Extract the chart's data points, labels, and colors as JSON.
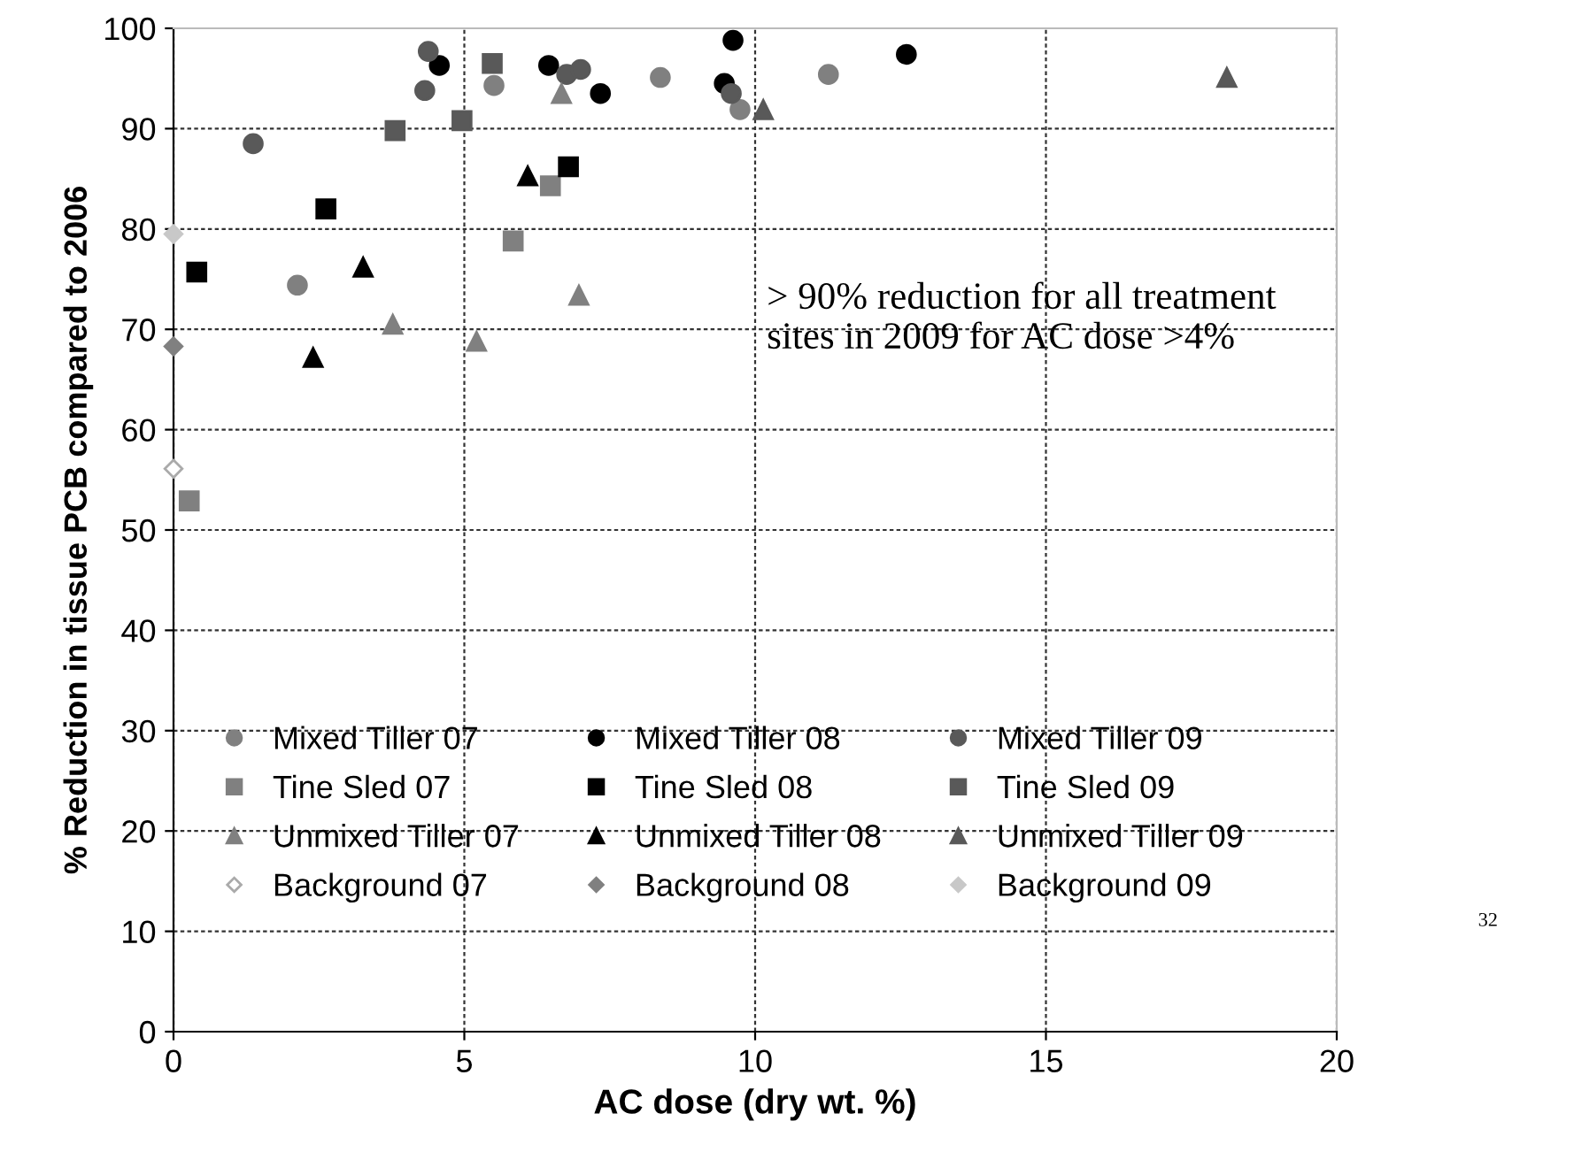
{
  "chart_data": {
    "type": "scatter",
    "xlabel": "AC dose (dry wt. %)",
    "ylabel": "% Reduction in tissue PCB compared to 2006",
    "xlim": [
      0,
      20
    ],
    "ylim": [
      0,
      100
    ],
    "xticks": [
      0,
      5,
      10,
      15,
      20
    ],
    "yticks": [
      0,
      10,
      20,
      30,
      40,
      50,
      60,
      70,
      80,
      90,
      100
    ],
    "grid": true,
    "legend": "bottom left",
    "annotations": [
      "> 90% reduction for all treatment\nsites in 2009 for AC dose >4%",
      "32"
    ],
    "series": [
      {
        "name": "Mixed Tiller 07",
        "color": "#808080",
        "marker": "circle",
        "x": [
          2.13,
          5.51,
          8.37,
          9.74,
          11.26
        ],
        "values": [
          74.4,
          94.3,
          95.1,
          91.9,
          95.4
        ]
      },
      {
        "name": "Mixed Tiller 08",
        "color": "#000000",
        "marker": "circle",
        "x": [
          4.57,
          6.45,
          7.34,
          9.62,
          9.47,
          12.6
        ],
        "values": [
          96.3,
          96.3,
          93.5,
          98.8,
          94.5,
          97.4
        ]
      },
      {
        "name": "Mixed Tiller 09",
        "color": "#595959",
        "marker": "circle",
        "x": [
          1.37,
          4.38,
          4.32,
          6.76,
          7.0,
          9.59
        ],
        "values": [
          88.5,
          97.7,
          93.8,
          95.4,
          95.9,
          93.5
        ]
      },
      {
        "name": "Tine Sled 07",
        "color": "#808080",
        "marker": "square",
        "x": [
          0.27,
          5.84,
          6.48
        ],
        "values": [
          52.9,
          78.8,
          84.3
        ]
      },
      {
        "name": "Tine Sled 08",
        "color": "#000000",
        "marker": "square",
        "x": [
          0.4,
          2.62,
          6.79
        ],
        "values": [
          75.7,
          82.0,
          86.2
        ]
      },
      {
        "name": "Tine Sled 09",
        "color": "#595959",
        "marker": "square",
        "x": [
          3.81,
          4.96,
          5.48
        ],
        "values": [
          89.8,
          90.8,
          96.5
        ]
      },
      {
        "name": "Unmixed Tiller 07",
        "color": "#808080",
        "marker": "triangle",
        "x": [
          3.77,
          5.21,
          6.97,
          6.67
        ],
        "values": [
          70.5,
          68.8,
          73.4,
          93.5
        ]
      },
      {
        "name": "Unmixed Tiller 08",
        "color": "#000000",
        "marker": "triangle",
        "x": [
          2.4,
          3.26,
          6.09
        ],
        "values": [
          67.2,
          76.2,
          85.3
        ]
      },
      {
        "name": "Unmixed Tiller 09",
        "color": "#595959",
        "marker": "triangle",
        "x": [
          10.14,
          18.11
        ],
        "values": [
          91.9,
          95.1
        ]
      },
      {
        "name": "Background 07",
        "color": "#ffffff",
        "marker": "diamond",
        "x": [
          0
        ],
        "values": [
          56.1
        ]
      },
      {
        "name": "Background 08",
        "color": "#808080",
        "marker": "diamond",
        "x": [
          0
        ],
        "values": [
          68.3
        ]
      },
      {
        "name": "Background 09",
        "color": "#c8c8c8",
        "marker": "diamond",
        "x": [
          0
        ],
        "values": [
          79.5
        ]
      }
    ]
  }
}
